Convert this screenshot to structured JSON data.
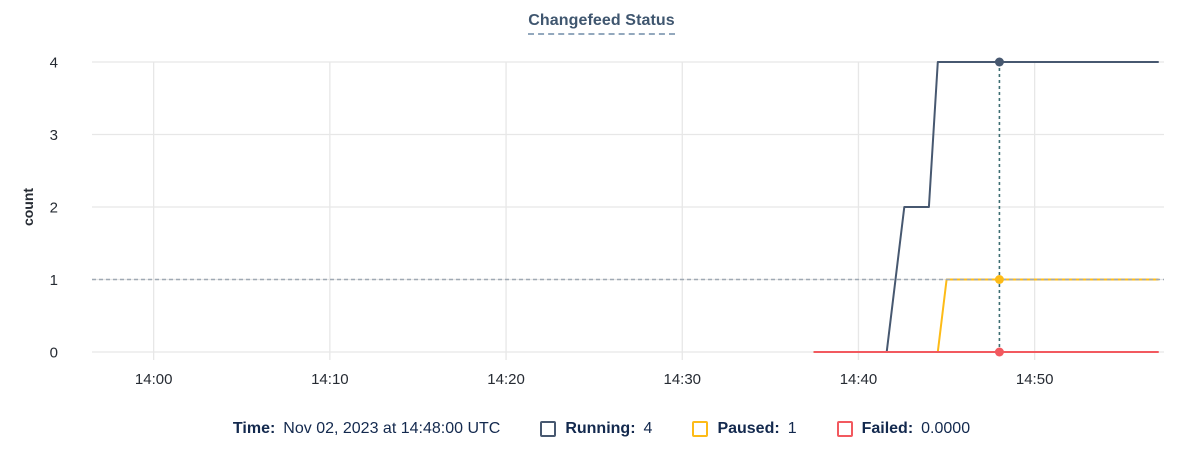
{
  "title": "Changefeed Status",
  "chart_data": {
    "type": "line",
    "title": "Changefeed Status",
    "xlabel": "",
    "ylabel": "count",
    "x_unit": "minutes after 14:00 UTC on Nov 02, 2023",
    "x_domain_minutes": [
      -3.5,
      57.0
    ],
    "ylim": [
      0,
      4
    ],
    "y_ticks": [
      0,
      1,
      2,
      3,
      4
    ],
    "x_ticks": [
      {
        "t": 0,
        "label": "14:00"
      },
      {
        "t": 10,
        "label": "14:10"
      },
      {
        "t": 20,
        "label": "14:20"
      },
      {
        "t": 30,
        "label": "14:30"
      },
      {
        "t": 40,
        "label": "14:40"
      },
      {
        "t": 50,
        "label": "14:50"
      }
    ],
    "grid": true,
    "legend_position": "bottom",
    "series": [
      {
        "name": "Running",
        "color": "#475870",
        "points": [
          [
            37.5,
            0
          ],
          [
            41.6,
            0
          ],
          [
            42.6,
            2
          ],
          [
            44.0,
            2
          ],
          [
            44.5,
            4
          ],
          [
            57.0,
            4
          ]
        ]
      },
      {
        "name": "Paused",
        "color": "#fdbb17",
        "points": [
          [
            37.5,
            0
          ],
          [
            44.5,
            0
          ],
          [
            45.0,
            1
          ],
          [
            57.0,
            1
          ]
        ]
      },
      {
        "name": "Failed",
        "color": "#f2595f",
        "points": [
          [
            37.5,
            0
          ],
          [
            57.0,
            0
          ]
        ]
      }
    ],
    "hover": {
      "x_minutes": 48,
      "time_label": "Nov 02, 2023 at 14:48:00 UTC",
      "guide_y": 1,
      "points": [
        {
          "series": "Running",
          "y": 4
        },
        {
          "series": "Paused",
          "y": 1
        },
        {
          "series": "Failed",
          "y": 0
        }
      ]
    },
    "style": {
      "grid_color": "#e7e7e7",
      "tick_text_color": "#262b33",
      "guide_h_color": "#9fa9b4",
      "guide_v_color": "#3e6f73"
    }
  },
  "legend": {
    "time_label": "Time:",
    "time_value": "Nov 02, 2023 at 14:48:00 UTC",
    "items": [
      {
        "label": "Running:",
        "value": "4",
        "color": "#475870"
      },
      {
        "label": "Paused:",
        "value": "1",
        "color": "#fdbb17"
      },
      {
        "label": "Failed:",
        "value": "0.0000",
        "color": "#f2595f"
      }
    ]
  }
}
